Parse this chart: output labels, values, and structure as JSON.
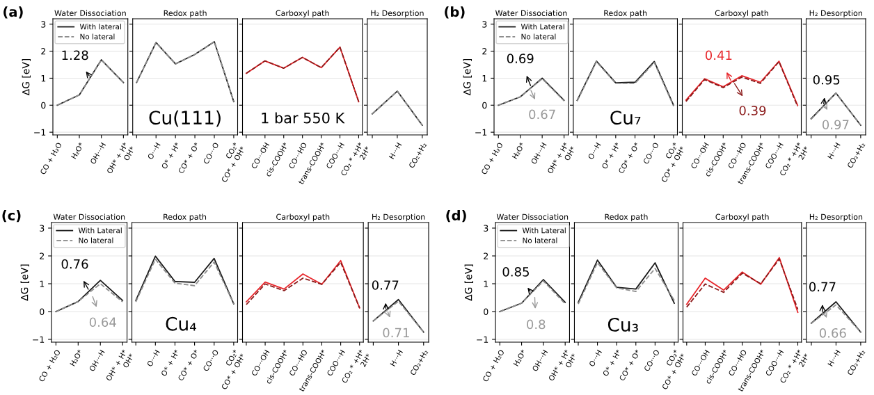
{
  "chart_data": [
    {
      "type": "line",
      "title": "Water Dissociation",
      "ylabel": "ΔG [eV]",
      "categories": [
        "CO + H₂O",
        "H₂O*",
        "OH···H",
        "OH* + H*\nOH*"
      ],
      "series": [
        {
          "name": "With lateral",
          "color": "#1a1a1a",
          "line_style": "solid",
          "values": [
            0,
            0.38,
            1.68,
            0.84
          ]
        },
        {
          "name": "No lateral",
          "color": "#8c8c8c",
          "line_style": "dashed",
          "values": [
            0,
            0.38,
            1.68,
            0.84
          ]
        }
      ],
      "ylim": [
        -1.1,
        3.2
      ],
      "yticks": [
        -1,
        0,
        1,
        2,
        3
      ],
      "grid": "y",
      "legend": "top left",
      "annotations": [
        "(a)",
        "1.28"
      ]
    },
    {
      "type": "line",
      "title": "Redox path",
      "categories": [
        null,
        "O···H",
        "O* + H*",
        "CO* + O*",
        "CO···O",
        "CO₂*\nCO* + OH*"
      ],
      "series": [
        {
          "color": "#1a1a1a",
          "line_style": "solid",
          "values": [
            0.84,
            2.32,
            1.53,
            1.88,
            2.35,
            0.13
          ]
        },
        {
          "color": "#8c8c8c",
          "line_style": "dashed",
          "values": [
            0.84,
            2.32,
            1.53,
            1.88,
            2.35,
            0.13
          ]
        }
      ],
      "ylim": [
        -1.1,
        3.2
      ],
      "yticks": [
        -1,
        0,
        1,
        2,
        3
      ],
      "grid": "y",
      "tick_labels": "x",
      "annotations": [
        "Cu(111)"
      ]
    },
    {
      "type": "line",
      "title": "Carboxyl path",
      "categories": [
        null,
        "CO···OH",
        "cis-COOH*",
        "CO···HO",
        "trans-COOH*",
        "COO···H",
        "CO₂ * +H*\n2H*"
      ],
      "series": [
        {
          "color": "#e8262b",
          "line_style": "solid",
          "values": [
            1.18,
            1.64,
            1.37,
            1.77,
            1.39,
            2.15,
            0.13
          ]
        },
        {
          "color": "#8b1a1a",
          "line_style": "dashed",
          "values": [
            1.18,
            1.64,
            1.37,
            1.77,
            1.39,
            2.15,
            0.13
          ]
        }
      ],
      "ylim": [
        -1.1,
        3.2
      ],
      "yticks": [
        -1,
        0,
        1,
        2,
        3
      ],
      "grid": "y",
      "tick_labels": "x",
      "annotations": [
        "1 bar 550 K"
      ]
    },
    {
      "type": "line",
      "title": "H₂ Desorption",
      "categories": [
        null,
        "H···H",
        "CO₂+H₂"
      ],
      "series": [
        {
          "color": "#1a1a1a",
          "line_style": "solid",
          "values": [
            -0.32,
            0.52,
            -0.74
          ]
        },
        {
          "color": "#8c8c8c",
          "line_style": "dashed",
          "values": [
            -0.32,
            0.52,
            -0.74
          ]
        }
      ],
      "ylim": [
        -1.1,
        3.2
      ],
      "yticks": [
        -1,
        0,
        1,
        2,
        3
      ],
      "grid": "y",
      "tick_labels": "x"
    },
    {
      "type": "line",
      "title": "Water Dissociation",
      "ylabel": "ΔG [eV]",
      "categories": [
        "CO + H₂O",
        "H₂O*",
        "OH···H",
        "OH* + H*\nOH*"
      ],
      "series": [
        {
          "name": "With Lateral",
          "color": "#1a1a1a",
          "line_style": "solid",
          "values": [
            0,
            0.31,
            1.0,
            0.18
          ]
        },
        {
          "name": "No lateral",
          "color": "#8c8c8c",
          "line_style": "dashed",
          "values": [
            0,
            0.31,
            0.98,
            0.16
          ]
        }
      ],
      "ylim": [
        -1.1,
        3.2
      ],
      "yticks": [
        -1,
        0,
        1,
        2,
        3
      ],
      "grid": "y",
      "legend": "top left",
      "annotations": [
        "(b)",
        "0.69",
        "0.67"
      ]
    },
    {
      "type": "line",
      "title": "Redox path",
      "categories": [
        null,
        "O···H",
        "O* + H*",
        "CO* + O*",
        "CO···O",
        "CO₂*\nCO* + OH*"
      ],
      "series": [
        {
          "color": "#1a1a1a",
          "line_style": "solid",
          "values": [
            0.18,
            1.63,
            0.83,
            0.85,
            1.62,
            0.0
          ]
        },
        {
          "color": "#8c8c8c",
          "line_style": "dashed",
          "values": [
            0.15,
            1.61,
            0.81,
            0.81,
            1.58,
            -0.03
          ]
        }
      ],
      "ylim": [
        -1.1,
        3.2
      ],
      "yticks": [
        -1,
        0,
        1,
        2,
        3
      ],
      "grid": "y",
      "tick_labels": "x",
      "annotations": [
        "Cu₇"
      ]
    },
    {
      "type": "line",
      "title": "Carboxyl path",
      "categories": [
        null,
        "CO···OH",
        "cis-COOH*",
        "CO···HO",
        "trans-COOH*",
        "COO···H",
        "CO₂ * +H*\n2H*"
      ],
      "series": [
        {
          "color": "#e8262b",
          "line_style": "solid",
          "values": [
            0.19,
            0.98,
            0.68,
            1.09,
            0.85,
            1.63,
            0.0
          ]
        },
        {
          "color": "#8b1a1a",
          "line_style": "dashed",
          "values": [
            0.14,
            0.95,
            0.65,
            1.04,
            0.81,
            1.61,
            -0.04
          ]
        }
      ],
      "ylim": [
        -1.1,
        3.2
      ],
      "yticks": [
        -1,
        0,
        1,
        2,
        3
      ],
      "grid": "y",
      "tick_labels": "x",
      "annotations": [
        "0.41",
        "0.39"
      ]
    },
    {
      "type": "line",
      "title": "H₂ Desorption",
      "categories": [
        null,
        "H···H",
        "CO₂+H₂"
      ],
      "series": [
        {
          "color": "#1a1a1a",
          "line_style": "solid",
          "values": [
            -0.5,
            0.45,
            -0.74
          ]
        },
        {
          "color": "#8c8c8c",
          "line_style": "dashed",
          "values": [
            -0.52,
            0.45,
            -0.74
          ]
        }
      ],
      "ylim": [
        -1.1,
        3.2
      ],
      "yticks": [
        -1,
        0,
        1,
        2,
        3
      ],
      "grid": "y",
      "tick_labels": "x",
      "annotations": [
        "0.95",
        "0.97"
      ]
    },
    {
      "type": "line",
      "title": "Water Dissociation",
      "ylabel": "ΔG [eV]",
      "categories": [
        "CO + H₂O",
        "H₂O*",
        "OH···H",
        "OH* + H*\nOH*"
      ],
      "series": [
        {
          "name": "With Lateral",
          "color": "#1a1a1a",
          "line_style": "solid",
          "values": [
            0,
            0.36,
            1.12,
            0.4
          ]
        },
        {
          "name": "No lateral",
          "color": "#8c8c8c",
          "line_style": "dashed",
          "values": [
            0,
            0.36,
            1.0,
            0.35
          ]
        }
      ],
      "ylim": [
        -1.1,
        3.2
      ],
      "yticks": [
        -1,
        0,
        1,
        2,
        3
      ],
      "grid": "y",
      "legend": "top left",
      "annotations": [
        "(c)",
        "0.76",
        "0.64"
      ]
    },
    {
      "type": "line",
      "title": "Redox path",
      "categories": [
        null,
        "O···H",
        "O* + H*",
        "CO* + O*",
        "CO···O",
        "CO₂*\nCO* + OH*"
      ],
      "series": [
        {
          "color": "#1a1a1a",
          "line_style": "solid",
          "values": [
            0.4,
            1.99,
            1.08,
            1.05,
            1.91,
            0.28
          ]
        },
        {
          "color": "#8c8c8c",
          "line_style": "dashed",
          "values": [
            0.35,
            1.88,
            1.02,
            0.93,
            1.78,
            0.28
          ]
        }
      ],
      "ylim": [
        -1.1,
        3.2
      ],
      "yticks": [
        -1,
        0,
        1,
        2,
        3
      ],
      "grid": "y",
      "tick_labels": "x",
      "annotations": [
        "Cu₄"
      ]
    },
    {
      "type": "line",
      "title": "Carboxyl path",
      "categories": [
        null,
        "CO···OH",
        "cis-COOH*",
        "CO···HO",
        "trans-COOH*",
        "COO···H",
        "CO₂ * +H*\n2H*"
      ],
      "series": [
        {
          "color": "#e8262b",
          "line_style": "solid",
          "values": [
            0.35,
            1.06,
            0.81,
            1.35,
            0.98,
            1.83,
            0.13
          ]
        },
        {
          "color": "#8b1a1a",
          "line_style": "dashed",
          "values": [
            0.25,
            0.99,
            0.75,
            1.2,
            0.98,
            1.77,
            0.13
          ]
        }
      ],
      "ylim": [
        -1.1,
        3.2
      ],
      "yticks": [
        -1,
        0,
        1,
        2,
        3
      ],
      "grid": "y",
      "tick_labels": "x"
    },
    {
      "type": "line",
      "title": "H₂ Desorption",
      "categories": [
        null,
        "H···H",
        "CO₂+H₂"
      ],
      "series": [
        {
          "color": "#1a1a1a",
          "line_style": "solid",
          "values": [
            -0.34,
            0.43,
            -0.74
          ]
        },
        {
          "color": "#8c8c8c",
          "line_style": "dashed",
          "values": [
            -0.34,
            0.37,
            -0.74
          ]
        }
      ],
      "ylim": [
        -1.1,
        3.2
      ],
      "yticks": [
        -1,
        0,
        1,
        2,
        3
      ],
      "grid": "y",
      "tick_labels": "x",
      "annotations": [
        "0.77",
        "0.71"
      ]
    },
    {
      "type": "line",
      "title": "Water Dissociation",
      "ylabel": "ΔG [eV]",
      "categories": [
        "CO + H₂O",
        "H₂O*",
        "OH···H",
        "OH* + H*\nOH*"
      ],
      "series": [
        {
          "name": "With Lateral",
          "color": "#1a1a1a",
          "line_style": "solid",
          "values": [
            0,
            0.3,
            1.15,
            0.33
          ]
        },
        {
          "name": "No lateral",
          "color": "#8c8c8c",
          "line_style": "dashed",
          "values": [
            0,
            0.3,
            1.1,
            0.28
          ]
        }
      ],
      "ylim": [
        -1.1,
        3.2
      ],
      "yticks": [
        -1,
        0,
        1,
        2,
        3
      ],
      "grid": "y",
      "legend": "top left",
      "annotations": [
        "(d)",
        "0.85",
        "0.8"
      ]
    },
    {
      "type": "line",
      "title": "Redox path",
      "categories": [
        null,
        "O···H",
        "O* + H*",
        "CO* + O*",
        "CO···O",
        "CO₂*\nCO* + OH*"
      ],
      "series": [
        {
          "color": "#1a1a1a",
          "line_style": "solid",
          "values": [
            0.33,
            1.85,
            0.87,
            0.81,
            1.75,
            0.3
          ]
        },
        {
          "color": "#8c8c8c",
          "line_style": "dashed",
          "values": [
            0.27,
            1.76,
            0.85,
            0.72,
            1.55,
            0.4
          ]
        }
      ],
      "ylim": [
        -1.1,
        3.2
      ],
      "yticks": [
        -1,
        0,
        1,
        2,
        3
      ],
      "grid": "y",
      "tick_labels": "x",
      "annotations": [
        "Cu₃"
      ]
    },
    {
      "type": "line",
      "title": "Carboxyl path",
      "categories": [
        null,
        "CO···OH",
        "cis-COOH*",
        "CO···HO",
        "trans-COOH*",
        "COO···H",
        "CO₂ * +H*\n2H*"
      ],
      "series": [
        {
          "color": "#e8262b",
          "line_style": "solid",
          "values": [
            0.26,
            1.2,
            0.77,
            1.42,
            0.98,
            1.94,
            -0.03
          ]
        },
        {
          "color": "#8b1a1a",
          "line_style": "dashed",
          "values": [
            0.16,
            0.99,
            0.69,
            1.38,
            1.0,
            1.89,
            0.08
          ]
        }
      ],
      "ylim": [
        -1.1,
        3.2
      ],
      "yticks": [
        -1,
        0,
        1,
        2,
        3
      ],
      "grid": "y",
      "tick_labels": "x"
    },
    {
      "type": "line",
      "title": "H₂ Desorption",
      "categories": [
        null,
        "H···H",
        "CO₂+H₂"
      ],
      "series": [
        {
          "color": "#1a1a1a",
          "line_style": "solid",
          "values": [
            -0.42,
            0.35,
            -0.74
          ]
        },
        {
          "color": "#8c8c8c",
          "line_style": "dashed",
          "values": [
            -0.42,
            0.24,
            -0.74
          ]
        }
      ],
      "ylim": [
        -1.1,
        3.2
      ],
      "yticks": [
        -1,
        0,
        1,
        2,
        3
      ],
      "grid": "y",
      "tick_labels": "x",
      "annotations": [
        "0.77",
        "0.66"
      ]
    }
  ]
}
